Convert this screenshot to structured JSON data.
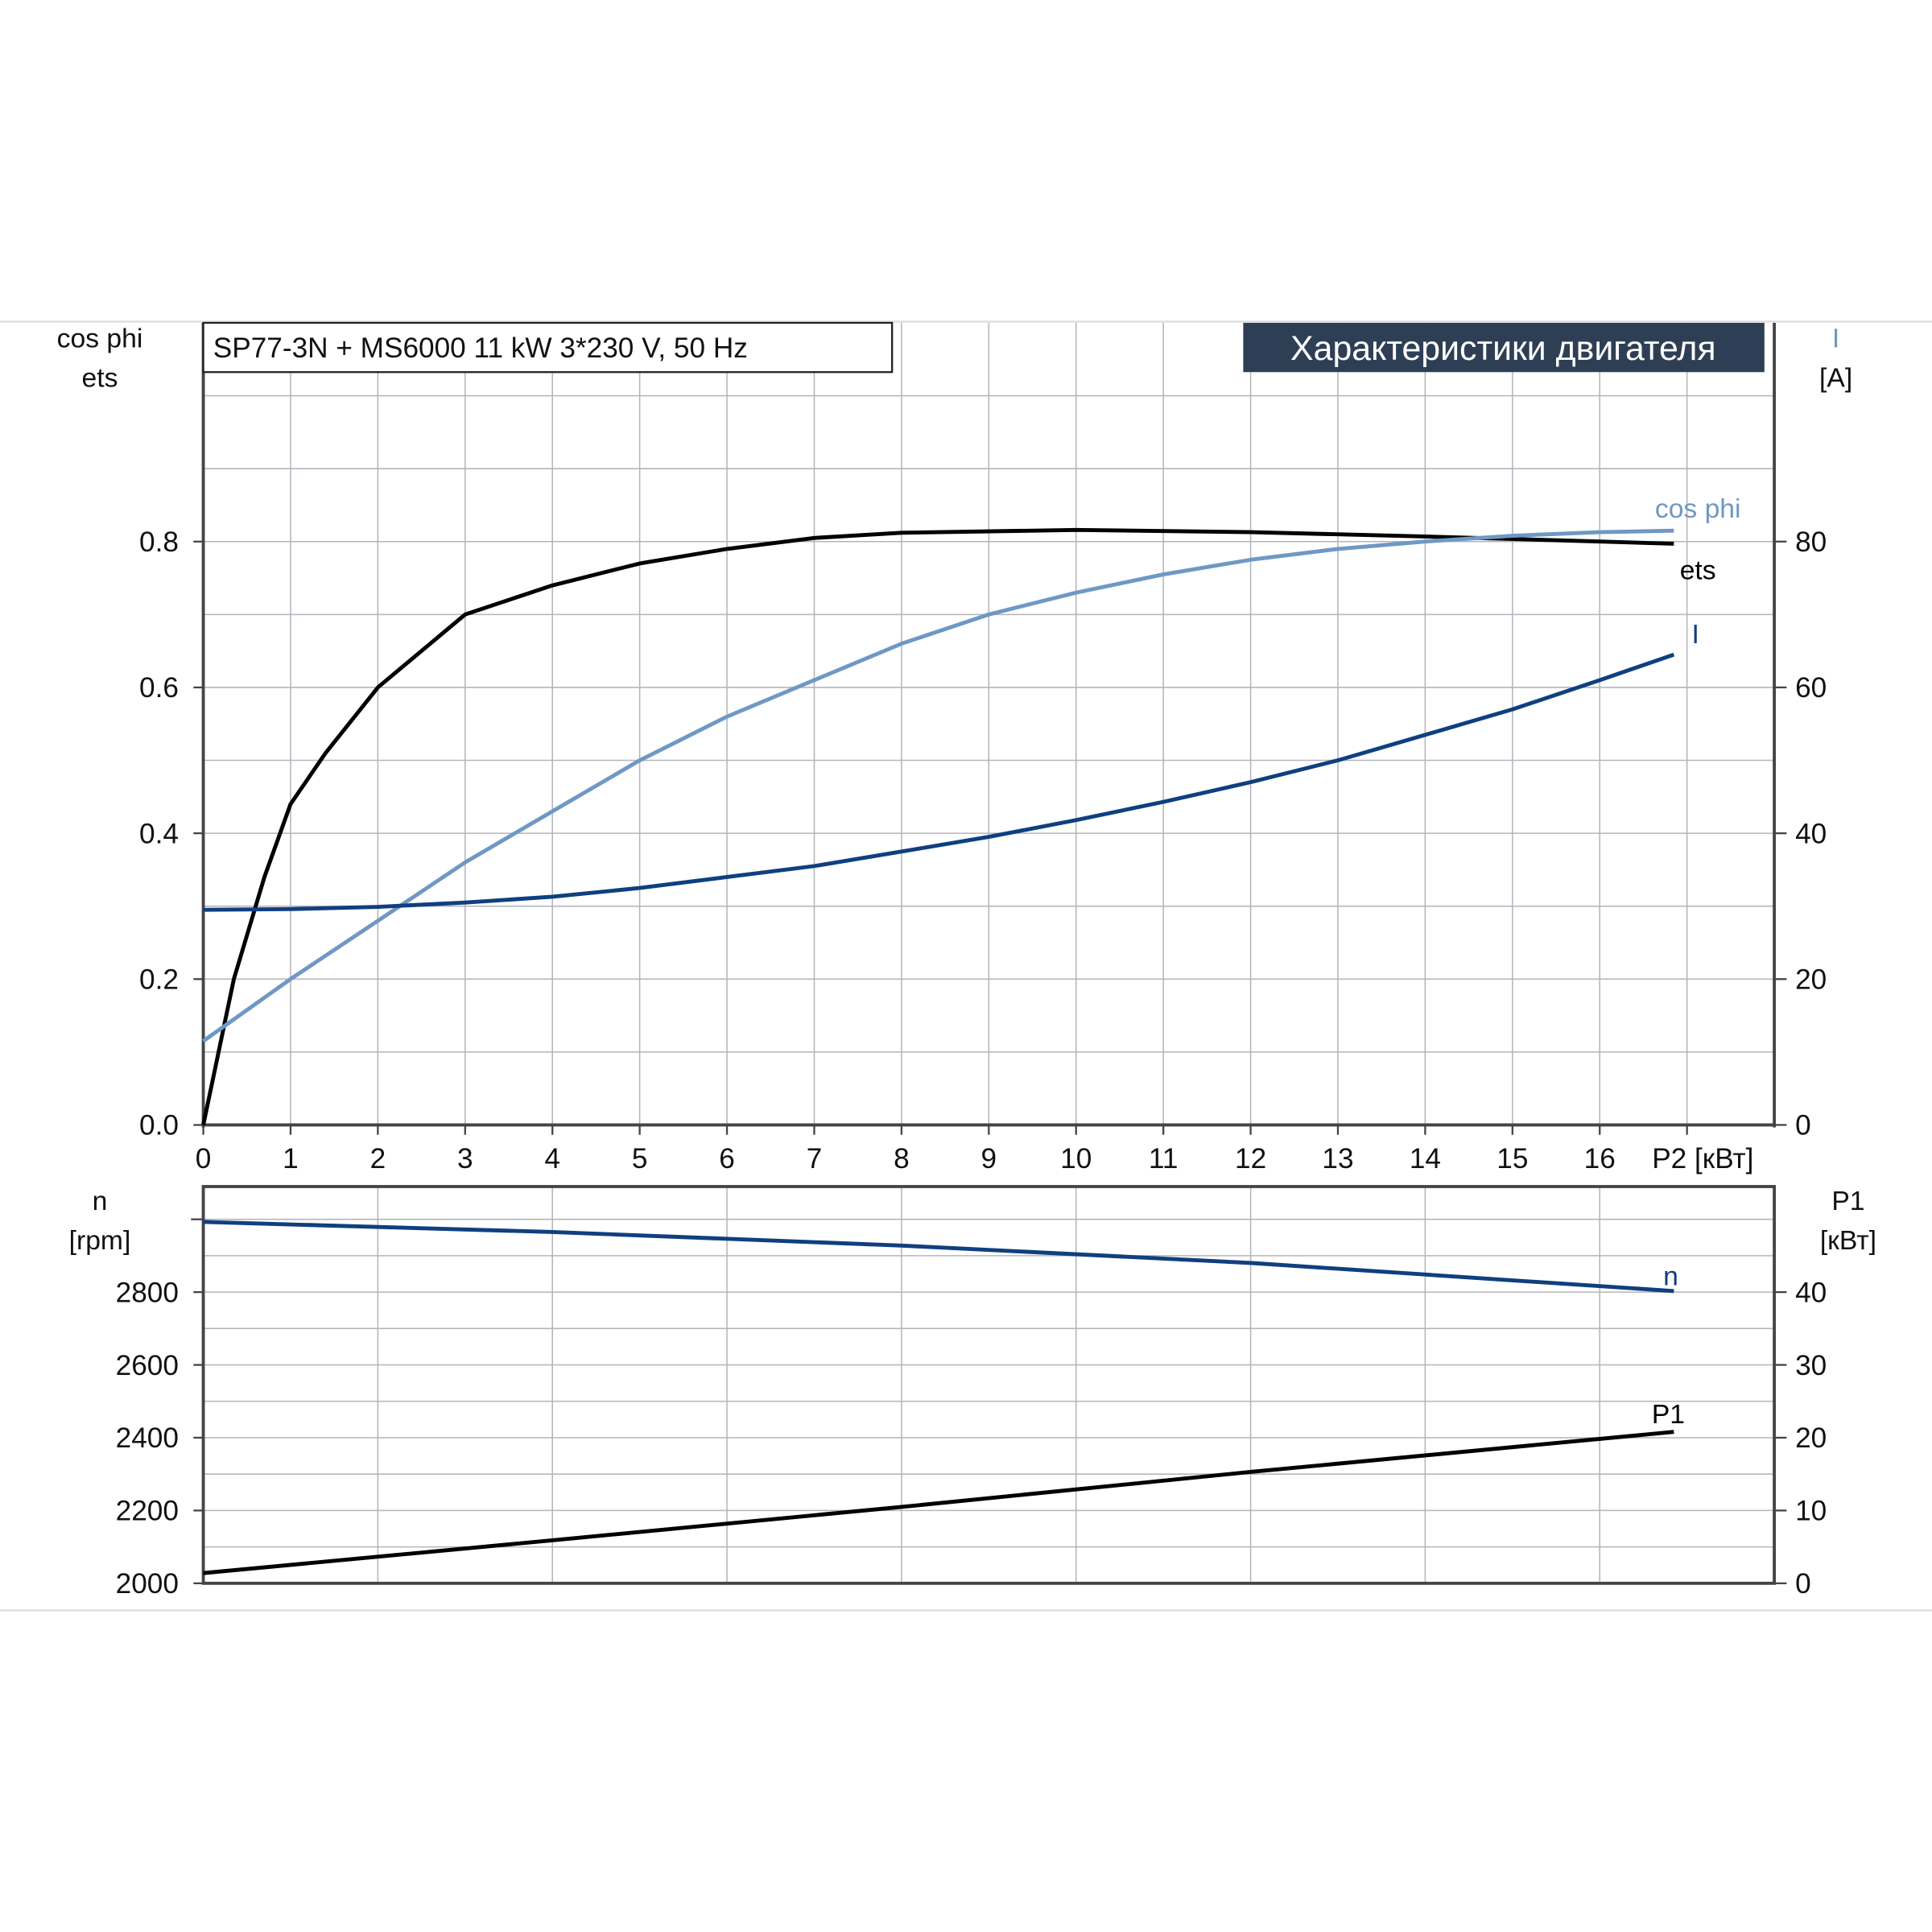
{
  "header": {
    "model_label": "SP77-3N + MS6000   11 kW   3*230 V, 50 Hz",
    "title_badge": "Характеристики двигателя"
  },
  "colors": {
    "ets": "#000000",
    "cos_phi": "#6f98c4",
    "current": "#0f3f80",
    "speed": "#0f3f80",
    "p1": "#000000",
    "badge_bg": "#2e3f55",
    "grid": "#b4b4bc"
  },
  "chart_data": [
    {
      "type": "line",
      "title": "Характеристики двигателя",
      "xlabel": "P2 [кВт]",
      "ylabel_left": [
        "cos phi",
        "ets"
      ],
      "ylabel_right": [
        "I",
        "[A]"
      ],
      "xlim": [
        0,
        18
      ],
      "ylim_left": [
        0,
        1.1
      ],
      "ylim_right": [
        0,
        110
      ],
      "grid": true,
      "x_ticks": [
        "0",
        "1",
        "2",
        "3",
        "4",
        "5",
        "6",
        "7",
        "8",
        "9",
        "10",
        "11",
        "12",
        "13",
        "14",
        "15",
        "16"
      ],
      "y_ticks_left": [
        "0.0",
        "0.2",
        "0.4",
        "0.6",
        "0.8"
      ],
      "y_ticks_right": [
        "0",
        "20",
        "40",
        "60",
        "80"
      ],
      "series": [
        {
          "name": "ets",
          "axis": "left",
          "x": [
            0,
            0.35,
            0.7,
            1,
            1.4,
            2,
            3,
            4,
            5,
            6,
            7,
            8,
            10,
            12,
            14,
            16,
            16.85
          ],
          "y": [
            0,
            0.2,
            0.34,
            0.44,
            0.51,
            0.6,
            0.7,
            0.74,
            0.77,
            0.79,
            0.805,
            0.812,
            0.816,
            0.813,
            0.807,
            0.8,
            0.797
          ]
        },
        {
          "name": "cos phi",
          "axis": "left",
          "x": [
            0,
            1,
            2,
            3,
            4,
            5,
            6,
            7,
            8,
            9,
            10,
            11,
            12,
            13,
            14,
            15,
            16,
            16.85
          ],
          "y": [
            0.115,
            0.2,
            0.28,
            0.36,
            0.43,
            0.5,
            0.56,
            0.61,
            0.66,
            0.7,
            0.73,
            0.755,
            0.775,
            0.79,
            0.8,
            0.808,
            0.813,
            0.815
          ]
        },
        {
          "name": "I",
          "axis": "right",
          "x": [
            0,
            1,
            2,
            3,
            4,
            5,
            6,
            7,
            8,
            9,
            10,
            11,
            12,
            13,
            14,
            15,
            16,
            16.85
          ],
          "y": [
            29.5,
            29.6,
            29.9,
            30.5,
            31.3,
            32.5,
            34,
            35.5,
            37.5,
            39.5,
            41.8,
            44.3,
            47,
            50,
            53.5,
            57,
            61,
            64.5
          ]
        }
      ]
    },
    {
      "type": "line",
      "ylabel_left": [
        "n",
        "[rpm]"
      ],
      "ylabel_right": [
        "P1",
        "[кВт]"
      ],
      "xlim": [
        0,
        18
      ],
      "ylim_left": [
        2000,
        3090
      ],
      "ylim_right": [
        0,
        54.5
      ],
      "grid": true,
      "y_ticks_left": [
        "2000",
        "2200",
        "2400",
        "2600",
        "2800"
      ],
      "y_ticks_right": [
        "0",
        "10",
        "20",
        "30",
        "40"
      ],
      "series": [
        {
          "name": "n",
          "axis": "left",
          "x": [
            0,
            4,
            8,
            12,
            16.85
          ],
          "y": [
            2993,
            2965,
            2928,
            2880,
            2803
          ]
        },
        {
          "name": "P1",
          "axis": "right",
          "x": [
            0,
            4,
            8,
            12,
            16.85
          ],
          "y": [
            1.4,
            5.9,
            10.5,
            15.3,
            20.8
          ]
        }
      ]
    }
  ]
}
